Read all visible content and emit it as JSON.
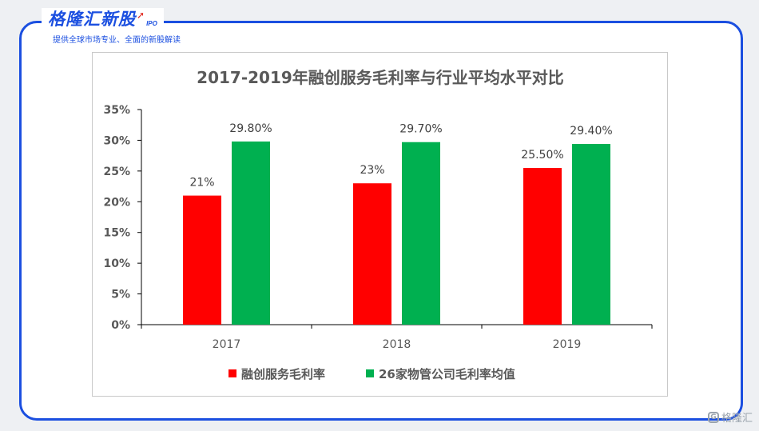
{
  "brand": {
    "name": "格隆汇新股",
    "sub": "IPO",
    "tagline": "提供全球市场专业、全面的新股解读"
  },
  "watermark": {
    "text": "格隆汇",
    "icon": "brand-logo-icon"
  },
  "colors": {
    "frame": "#1b4fe0",
    "series1": "#ff0000",
    "series2": "#00b050"
  },
  "chart_data": {
    "type": "bar",
    "title": "2017-2019年融创服务毛利率与行业平均水平对比",
    "categories": [
      "2017",
      "2018",
      "2019"
    ],
    "series": [
      {
        "name": "融创服务毛利率",
        "color": "#ff0000",
        "values": [
          21.0,
          23.0,
          25.5
        ],
        "labels": [
          "21%",
          "23%",
          "25.50%"
        ]
      },
      {
        "name": "26家物管公司毛利率均值",
        "color": "#00b050",
        "values": [
          29.8,
          29.7,
          29.4
        ],
        "labels": [
          "29.80%",
          "29.70%",
          "29.40%"
        ]
      }
    ],
    "yticks": [
      "0%",
      "5%",
      "10%",
      "15%",
      "20%",
      "25%",
      "30%",
      "35%"
    ],
    "ylim": [
      0,
      35
    ],
    "grid": false,
    "legend_position": "bottom",
    "xlabel": "",
    "ylabel": ""
  }
}
